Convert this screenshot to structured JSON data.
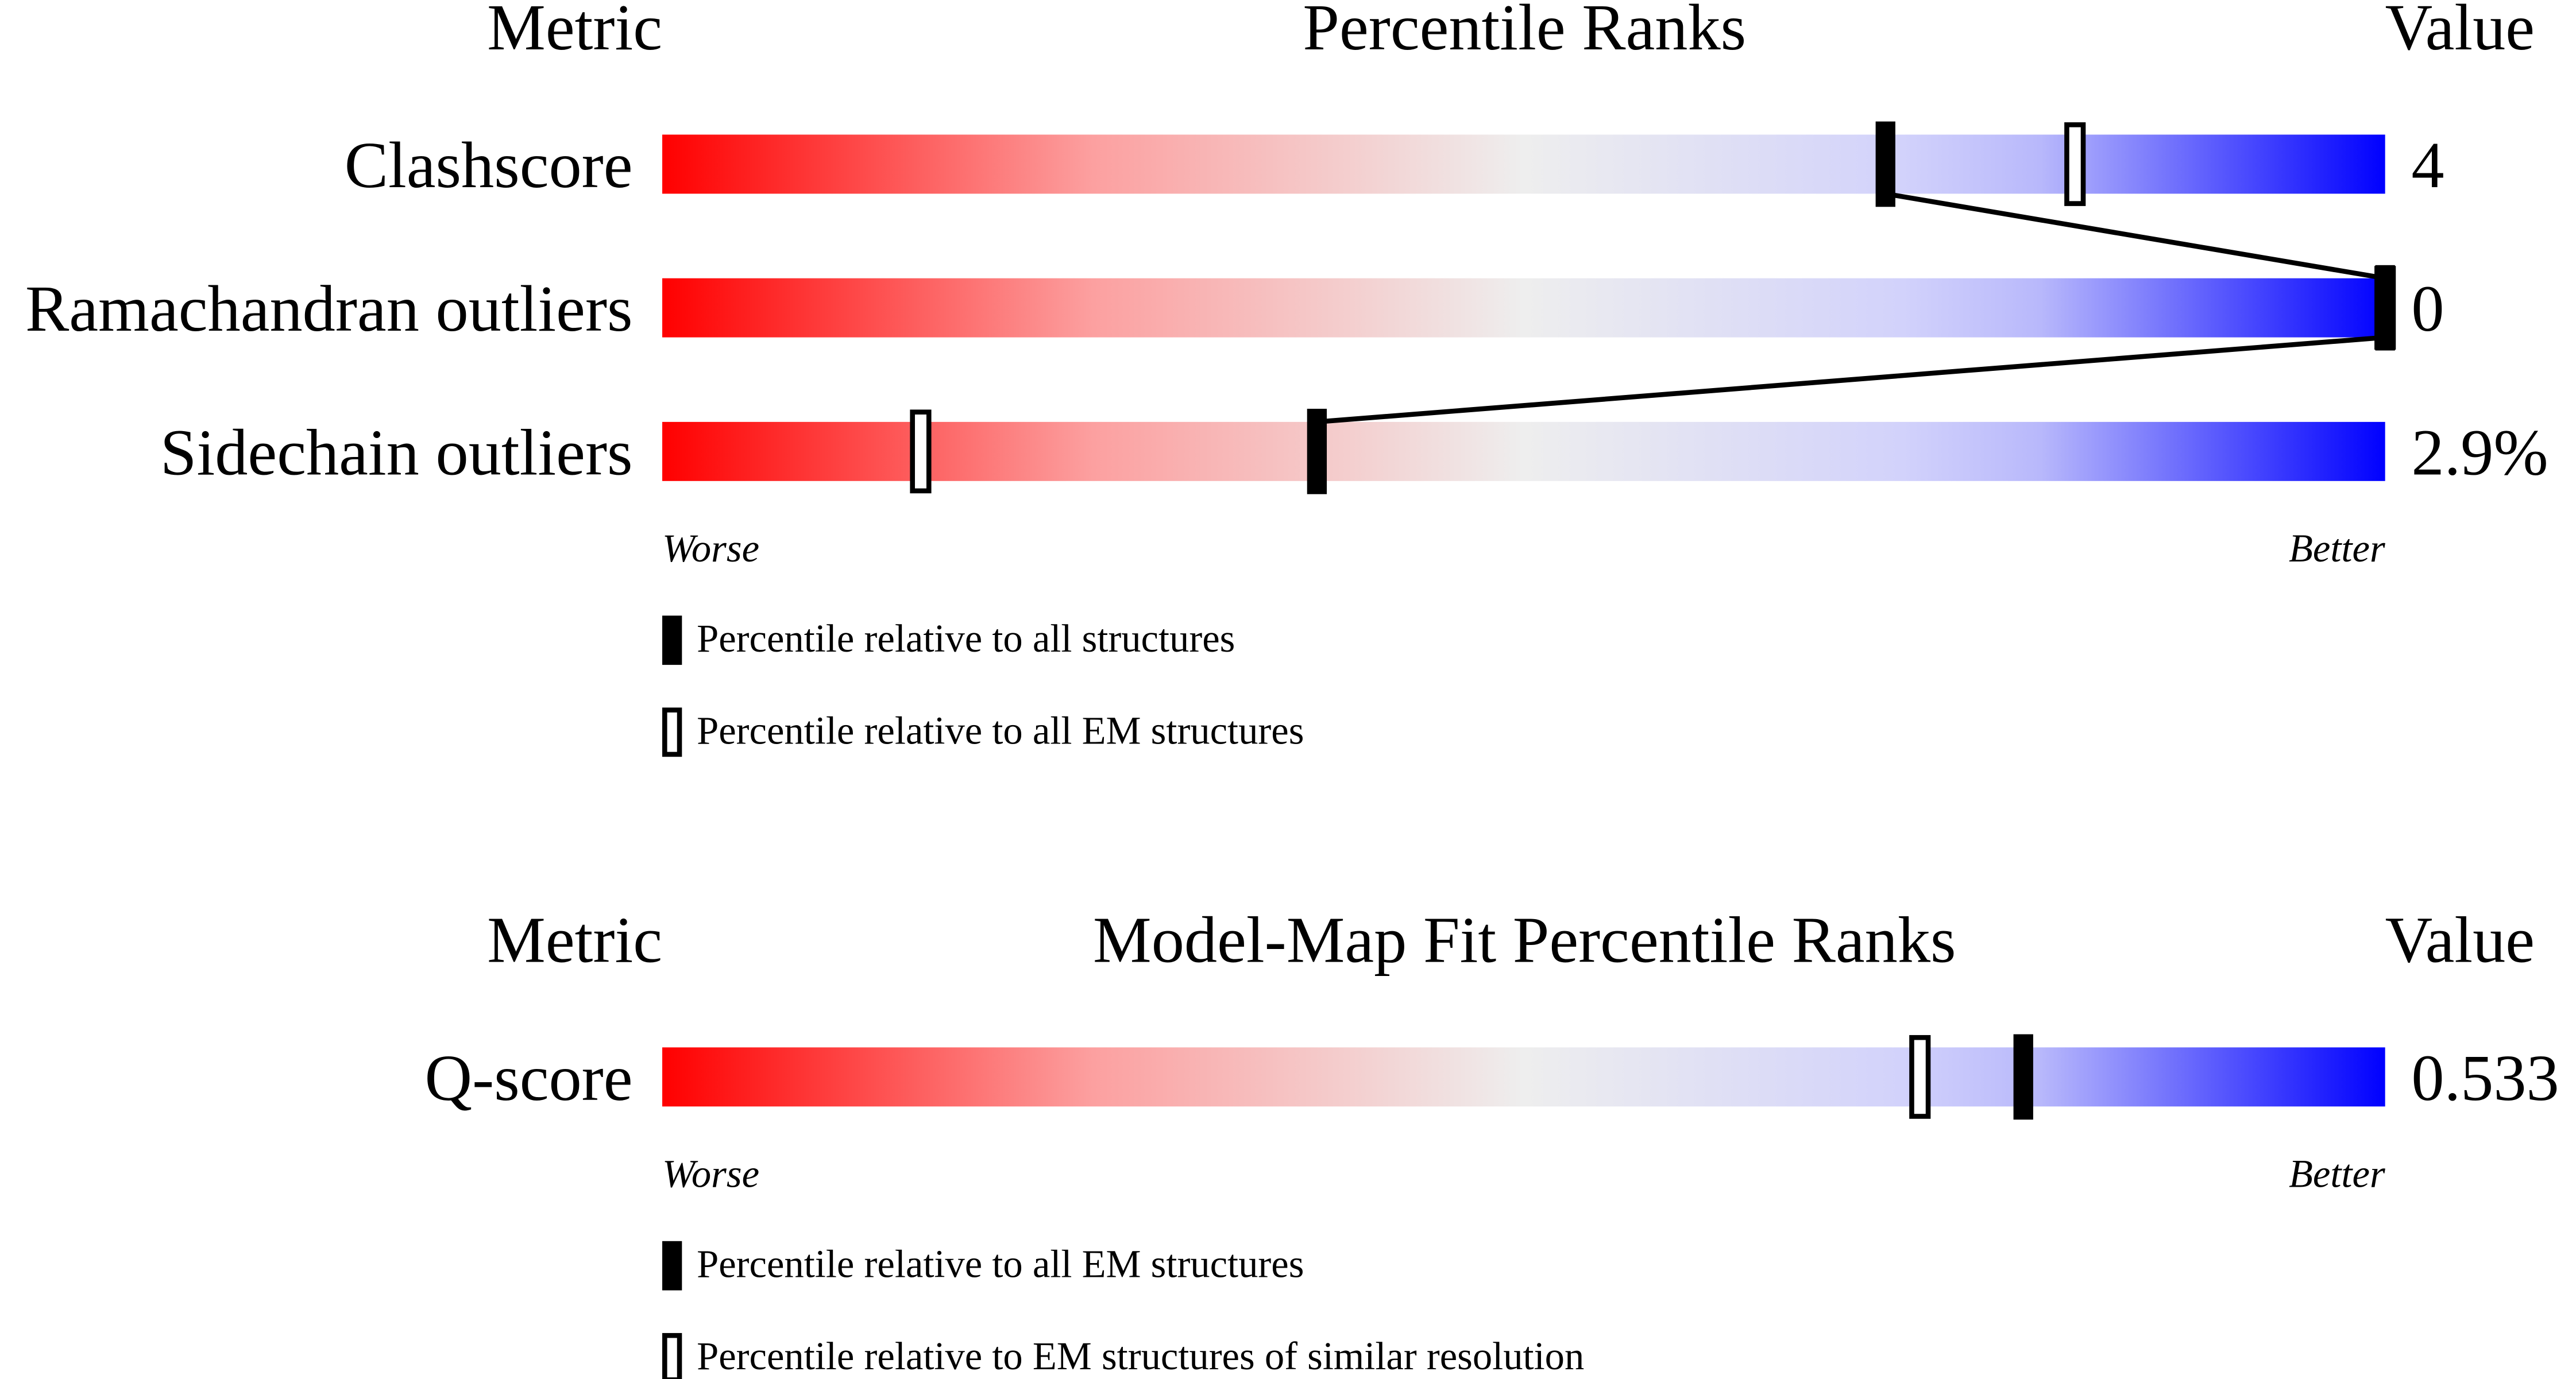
{
  "sections": [
    {
      "header": {
        "metric": "Metric",
        "title": "Percentile Ranks",
        "value": "Value"
      },
      "rows": [
        {
          "metric": "Clashscore",
          "value": "4",
          "percentile_all": 71,
          "percentile_em": 82
        },
        {
          "metric": "Ramachandran outliers",
          "value": "0",
          "percentile_all": 100,
          "percentile_em": 100
        },
        {
          "metric": "Sidechain outliers",
          "value": "2.9%",
          "percentile_all": 38,
          "percentile_em": 15
        }
      ],
      "worse": "Worse",
      "better": "Better",
      "legend": [
        "Percentile relative to all structures",
        "Percentile relative to all EM structures"
      ]
    },
    {
      "header": {
        "metric": "Metric",
        "title": "Model-Map Fit Percentile Ranks",
        "value": "Value"
      },
      "rows": [
        {
          "metric": "Q-score",
          "value": "0.533",
          "percentile_all": 79,
          "percentile_em": 73
        }
      ],
      "worse": "Worse",
      "better": "Better",
      "legend": [
        "Percentile relative to all EM structures",
        "Percentile relative to EM structures of similar resolution"
      ]
    }
  ]
}
